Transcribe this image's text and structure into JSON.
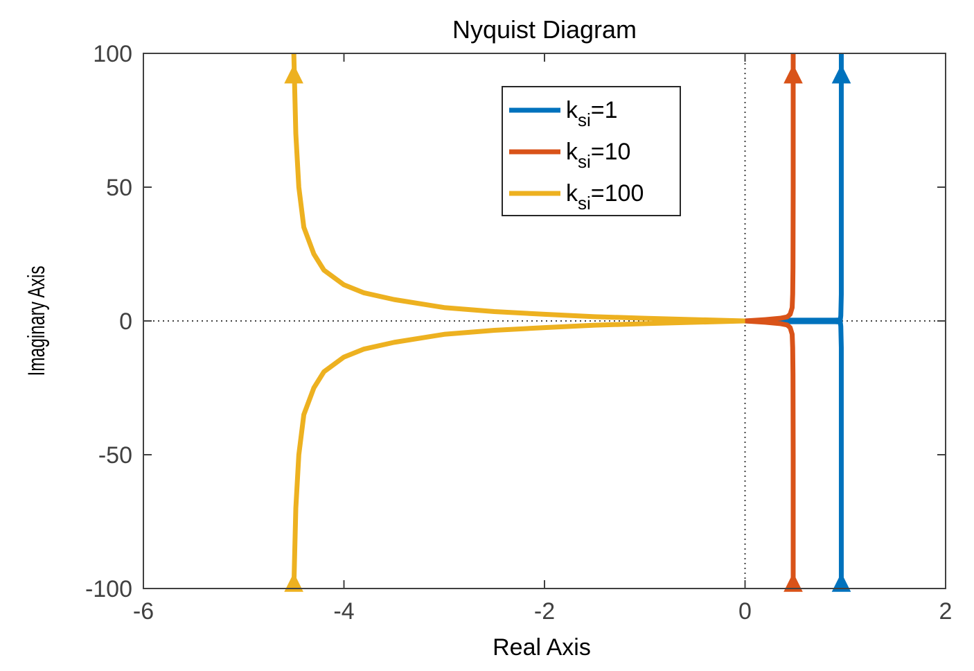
{
  "chart_data": {
    "type": "line",
    "title": "Nyquist Diagram",
    "xlabel": "Real Axis",
    "ylabel": "Imaginary Axis",
    "xlim": [
      -6,
      2
    ],
    "ylim": [
      -100,
      100
    ],
    "xticks": [
      -6,
      -4,
      -2,
      0,
      2
    ],
    "yticks": [
      -100,
      -50,
      0,
      50,
      100
    ],
    "xtick_labels": [
      "-6",
      "-4",
      "-2",
      "0",
      "2"
    ],
    "ytick_labels": [
      "-100",
      "-50",
      "0",
      "50",
      "100"
    ],
    "grid": false,
    "reference_lines": {
      "x": 0,
      "y": 0,
      "style": "dotted"
    },
    "legend_position": "top-right",
    "legend_label_prefix": "k",
    "legend_label_subscript": "si",
    "series": [
      {
        "name": "k_si=1",
        "legend_value": "=1",
        "color": "#0072BD",
        "x": [
          0.0,
          0.25,
          0.5,
          0.75,
          0.9,
          0.95,
          0.955,
          0.96,
          0.96,
          0.96
        ],
        "y": [
          0.0,
          0.3,
          0.3,
          0.3,
          0.3,
          0.4,
          2.0,
          10.0,
          50.0,
          100.0
        ]
      },
      {
        "name": "k_si=10",
        "legend_value": "=10",
        "color": "#D95319",
        "x": [
          0.0,
          0.2,
          0.35,
          0.42,
          0.45,
          0.47,
          0.475,
          0.478,
          0.48,
          0.48
        ],
        "y": [
          0.0,
          0.5,
          1.0,
          1.5,
          2.5,
          5.0,
          10.0,
          20.0,
          50.0,
          100.0
        ]
      },
      {
        "name": "k_si=100",
        "legend_value": "=100",
        "color": "#EDB120",
        "x": [
          0.0,
          -0.5,
          -1.0,
          -1.5,
          -2.0,
          -2.5,
          -3.0,
          -3.5,
          -3.8,
          -4.0,
          -4.2,
          -4.3,
          -4.4,
          -4.45,
          -4.48,
          -4.49,
          -4.5
        ],
        "y": [
          0.0,
          0.5,
          1.0,
          1.6,
          2.5,
          3.5,
          5.0,
          8.0,
          10.5,
          13.5,
          19.0,
          25.0,
          35.0,
          50.0,
          70.0,
          85.0,
          100.0
        ]
      }
    ],
    "arrows": [
      {
        "series": 0,
        "x": 0.96,
        "y": 92,
        "direction": "up"
      },
      {
        "series": 0,
        "x": 0.96,
        "y": -98,
        "direction": "up"
      },
      {
        "series": 1,
        "x": 0.48,
        "y": 92,
        "direction": "up"
      },
      {
        "series": 1,
        "x": 0.48,
        "y": -98,
        "direction": "up"
      },
      {
        "series": 2,
        "x": -4.5,
        "y": 92,
        "direction": "up"
      },
      {
        "series": 2,
        "x": -4.5,
        "y": -98,
        "direction": "up"
      }
    ]
  }
}
